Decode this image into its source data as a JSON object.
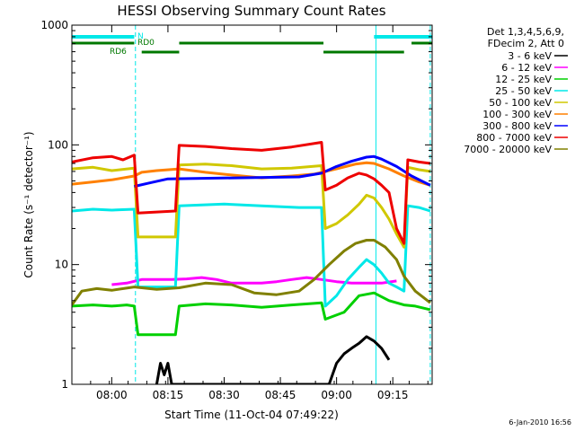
{
  "chart_data": {
    "type": "line",
    "title": "HESSI Observing Summary Count Rates",
    "xlabel": "Start Time (11-Oct-04 07:49:22)",
    "ylabel": "Count Rate (s⁻¹ detector⁻¹)",
    "y_scale": "log",
    "ylim": [
      1,
      1000
    ],
    "xlim": [
      "07:49:22",
      "09:25:30"
    ],
    "x_ticks": [
      "08:00",
      "08:15",
      "08:30",
      "08:45",
      "09:00",
      "09:15"
    ],
    "y_ticks": [
      "1",
      "10",
      "100",
      "1000"
    ],
    "legend_header": [
      "Det 1,3,4,5,6,9,",
      "FDecim 2, Att 0"
    ],
    "legend_position": "right",
    "footer_date": "6-Jan-2010 16:56",
    "markers": {
      "N": {
        "label": "N",
        "color": "#00e8e8",
        "segments": [
          [
            "07:49:22",
            "08:06:00"
          ],
          [
            "09:10:00",
            "09:25:30"
          ]
        ]
      },
      "RD0": {
        "label": "RD0",
        "color": "#007800",
        "segments": [
          [
            "07:49:22",
            "08:06:00"
          ],
          [
            "08:18:00",
            "08:56:30"
          ],
          [
            "09:20:00",
            "09:25:30"
          ]
        ]
      },
      "RD6": {
        "label": "RD6",
        "color": "#007800",
        "segments": [
          [
            "08:08:00",
            "08:18:00"
          ],
          [
            "08:56:30",
            "09:18:00"
          ]
        ]
      }
    },
    "vlines": {
      "solid": [
        "07:49:22",
        "09:10:30"
      ],
      "dashed": [
        "08:06:20",
        "09:25:00"
      ]
    },
    "series": [
      {
        "name": "3 - 6 keV",
        "color": "#000000",
        "points": [
          [
            "08:12:00",
            1.0
          ],
          [
            "08:13:00",
            1.5
          ],
          [
            "08:14:00",
            1.2
          ],
          [
            "08:15:00",
            1.5
          ],
          [
            "08:16:00",
            1.0
          ],
          [
            "08:58:00",
            1.0
          ],
          [
            "09:00:00",
            1.5
          ],
          [
            "09:02:00",
            1.8
          ],
          [
            "09:04:00",
            2.0
          ],
          [
            "09:06:00",
            2.2
          ],
          [
            "09:08:00",
            2.5
          ],
          [
            "09:10:00",
            2.3
          ],
          [
            "09:12:00",
            2.0
          ],
          [
            "09:14:00",
            1.6
          ]
        ]
      },
      {
        "name": "6 - 12 keV",
        "color": "#ff00ff",
        "points": [
          [
            "08:00:00",
            6.8
          ],
          [
            "08:04:00",
            7.0
          ],
          [
            "08:08:00",
            7.5
          ],
          [
            "08:12:00",
            7.5
          ],
          [
            "08:16:00",
            7.5
          ],
          [
            "08:20:00",
            7.6
          ],
          [
            "08:24:00",
            7.8
          ],
          [
            "08:28:00",
            7.5
          ],
          [
            "08:32:00",
            7.0
          ],
          [
            "08:36:00",
            7.0
          ],
          [
            "08:40:00",
            7.0
          ],
          [
            "08:44:00",
            7.2
          ],
          [
            "08:48:00",
            7.5
          ],
          [
            "08:52:00",
            7.8
          ],
          [
            "08:56:00",
            7.5
          ],
          [
            "09:00:00",
            7.2
          ],
          [
            "09:04:00",
            7.0
          ],
          [
            "09:08:00",
            7.0
          ],
          [
            "09:12:00",
            7.0
          ],
          [
            "09:16:00",
            7.3
          ]
        ]
      },
      {
        "name": "12 - 25 keV",
        "color": "#00d000",
        "points": [
          [
            "07:49:22",
            4.5
          ],
          [
            "07:55:00",
            4.6
          ],
          [
            "08:00:00",
            4.5
          ],
          [
            "08:04:00",
            4.6
          ],
          [
            "08:06:00",
            4.5
          ],
          [
            "08:07:00",
            2.6
          ],
          [
            "08:17:00",
            2.6
          ],
          [
            "08:18:00",
            4.5
          ],
          [
            "08:25:00",
            4.7
          ],
          [
            "08:32:00",
            4.6
          ],
          [
            "08:40:00",
            4.4
          ],
          [
            "08:48:00",
            4.6
          ],
          [
            "08:56:00",
            4.8
          ],
          [
            "08:57:00",
            3.5
          ],
          [
            "09:02:00",
            4.0
          ],
          [
            "09:06:00",
            5.5
          ],
          [
            "09:10:00",
            5.8
          ],
          [
            "09:14:00",
            5.0
          ],
          [
            "09:18:00",
            4.6
          ],
          [
            "09:21:00",
            4.5
          ],
          [
            "09:25:00",
            4.2
          ]
        ]
      },
      {
        "name": "25 - 50 keV",
        "color": "#00e8e8",
        "points": [
          [
            "07:49:22",
            28
          ],
          [
            "07:55:00",
            29
          ],
          [
            "08:00:00",
            28.5
          ],
          [
            "08:06:00",
            29
          ],
          [
            "08:07:00",
            6.5
          ],
          [
            "08:17:00",
            6.5
          ],
          [
            "08:18:00",
            31
          ],
          [
            "08:30:00",
            32
          ],
          [
            "08:40:00",
            31
          ],
          [
            "08:50:00",
            30
          ],
          [
            "08:56:00",
            30
          ],
          [
            "08:57:00",
            4.5
          ],
          [
            "09:00:00",
            5.5
          ],
          [
            "09:03:00",
            7.5
          ],
          [
            "09:06:00",
            9.5
          ],
          [
            "09:08:00",
            11
          ],
          [
            "09:10:00",
            10
          ],
          [
            "09:12:00",
            8.5
          ],
          [
            "09:14:00",
            7.0
          ],
          [
            "09:16:00",
            6.5
          ],
          [
            "09:18:00",
            6.0
          ],
          [
            "09:19:00",
            31
          ],
          [
            "09:22:00",
            30
          ],
          [
            "09:25:00",
            28
          ]
        ]
      },
      {
        "name": "50 - 100 keV",
        "color": "#d0c800",
        "points": [
          [
            "07:49:22",
            63
          ],
          [
            "07:55:00",
            65
          ],
          [
            "08:00:00",
            61
          ],
          [
            "08:06:00",
            64
          ],
          [
            "08:07:00",
            17
          ],
          [
            "08:17:00",
            17
          ],
          [
            "08:18:00",
            68
          ],
          [
            "08:25:00",
            69
          ],
          [
            "08:32:00",
            67
          ],
          [
            "08:40:00",
            63
          ],
          [
            "08:48:00",
            64
          ],
          [
            "08:56:00",
            67
          ],
          [
            "08:57:00",
            20
          ],
          [
            "09:00:00",
            22
          ],
          [
            "09:03:00",
            26
          ],
          [
            "09:06:00",
            32
          ],
          [
            "09:08:00",
            38
          ],
          [
            "09:10:00",
            36
          ],
          [
            "09:12:00",
            30
          ],
          [
            "09:14:00",
            24
          ],
          [
            "09:16:00",
            18
          ],
          [
            "09:18:00",
            14
          ],
          [
            "09:19:00",
            65
          ],
          [
            "09:22:00",
            62
          ],
          [
            "09:25:00",
            60
          ]
        ]
      },
      {
        "name": "100 - 300 keV",
        "color": "#ff8000",
        "points": [
          [
            "07:49:22",
            47
          ],
          [
            "07:55:00",
            49
          ],
          [
            "08:00:00",
            51
          ],
          [
            "08:06:00",
            55
          ],
          [
            "08:08:00",
            59
          ],
          [
            "08:12:00",
            61
          ],
          [
            "08:18:00",
            63
          ],
          [
            "08:25:00",
            59
          ],
          [
            "08:32:00",
            56
          ],
          [
            "08:40:00",
            53
          ],
          [
            "08:48:00",
            55
          ],
          [
            "08:54:00",
            57
          ],
          [
            "09:00:00",
            63
          ],
          [
            "09:05:00",
            69
          ],
          [
            "09:08:00",
            71
          ],
          [
            "09:10:00",
            70
          ],
          [
            "09:14:00",
            63
          ],
          [
            "09:18:00",
            55
          ],
          [
            "09:22:00",
            49
          ],
          [
            "09:25:00",
            46
          ]
        ]
      },
      {
        "name": "300 - 800 keV",
        "color": "#0000ff",
        "points": [
          [
            "08:06:00",
            45
          ],
          [
            "08:10:00",
            48
          ],
          [
            "08:15:00",
            52
          ],
          [
            "08:50:00",
            54
          ],
          [
            "08:56:00",
            58
          ],
          [
            "09:00:00",
            66
          ],
          [
            "09:04:00",
            73
          ],
          [
            "09:08:00",
            79
          ],
          [
            "09:10:00",
            80
          ],
          [
            "09:12:00",
            76
          ],
          [
            "09:16:00",
            66
          ],
          [
            "09:20:00",
            55
          ],
          [
            "09:25:00",
            46
          ]
        ]
      },
      {
        "name": "800 - 7000 keV",
        "color": "#ee0000",
        "points": [
          [
            "07:49:22",
            72
          ],
          [
            "07:55:00",
            78
          ],
          [
            "08:00:00",
            80
          ],
          [
            "08:03:00",
            75
          ],
          [
            "08:06:00",
            82
          ],
          [
            "08:07:00",
            27
          ],
          [
            "08:17:00",
            28
          ],
          [
            "08:18:00",
            99
          ],
          [
            "08:25:00",
            97
          ],
          [
            "08:32:00",
            93
          ],
          [
            "08:40:00",
            90
          ],
          [
            "08:48:00",
            96
          ],
          [
            "08:56:00",
            105
          ],
          [
            "08:57:00",
            42
          ],
          [
            "09:00:00",
            46
          ],
          [
            "09:03:00",
            53
          ],
          [
            "09:06:00",
            58
          ],
          [
            "09:08:00",
            56
          ],
          [
            "09:10:00",
            52
          ],
          [
            "09:12:00",
            46
          ],
          [
            "09:14:00",
            40
          ],
          [
            "09:16:00",
            20
          ],
          [
            "09:18:00",
            15
          ],
          [
            "09:19:00",
            75
          ],
          [
            "09:22:00",
            72
          ],
          [
            "09:25:00",
            70
          ]
        ]
      },
      {
        "name": "7000 - 20000 keV",
        "color": "#808000",
        "points": [
          [
            "07:49:22",
            4.6
          ],
          [
            "07:52:00",
            6.0
          ],
          [
            "07:56:00",
            6.3
          ],
          [
            "08:00:00",
            6.1
          ],
          [
            "08:06:00",
            6.5
          ],
          [
            "08:12:00",
            6.2
          ],
          [
            "08:18:00",
            6.4
          ],
          [
            "08:25:00",
            7.0
          ],
          [
            "08:32:00",
            6.8
          ],
          [
            "08:38:00",
            5.8
          ],
          [
            "08:44:00",
            5.6
          ],
          [
            "08:50:00",
            6.0
          ],
          [
            "08:54:00",
            7.5
          ],
          [
            "08:58:00",
            10
          ],
          [
            "09:02:00",
            13
          ],
          [
            "09:05:00",
            15
          ],
          [
            "09:08:00",
            16
          ],
          [
            "09:10:00",
            16
          ],
          [
            "09:13:00",
            14
          ],
          [
            "09:16:00",
            11
          ],
          [
            "09:18:00",
            8
          ],
          [
            "09:21:00",
            6.0
          ],
          [
            "09:25:00",
            4.8
          ]
        ]
      }
    ]
  }
}
